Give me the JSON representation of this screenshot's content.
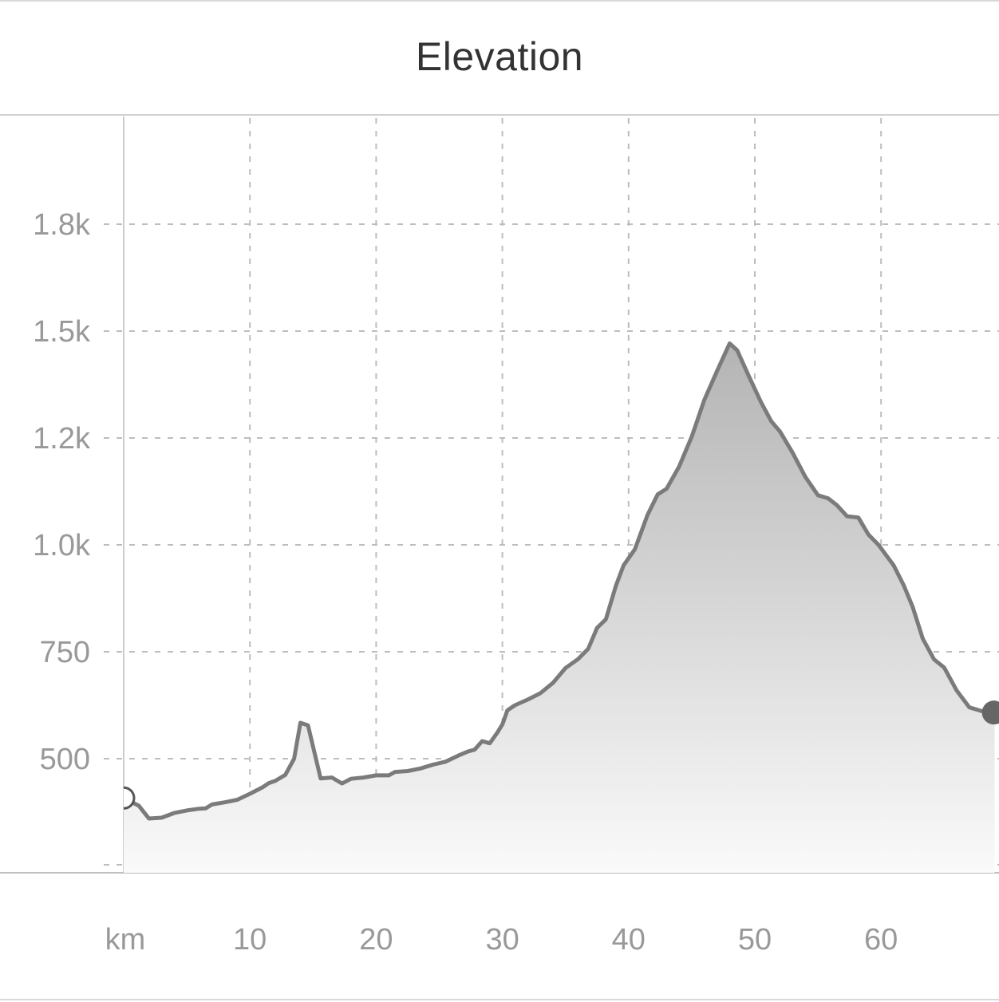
{
  "chart_data": {
    "type": "area",
    "title": "Elevation",
    "xlabel": "km",
    "ylabel": "",
    "x_tick_labels": [
      "km",
      "10",
      "20",
      "30",
      "40",
      "50",
      "60"
    ],
    "y_tick_labels": [
      "500",
      "750",
      "1.0k",
      "1.2k",
      "1.5k",
      "1.8k"
    ],
    "xlim": [
      0,
      69
    ],
    "ylim": [
      300,
      2070
    ],
    "grid": true,
    "colors": {
      "line": "#7b7b7b",
      "fill_top": "#b4b4b4",
      "fill_bottom": "#fafafa",
      "grid": "#bdbdbd",
      "end_marker": "#666666"
    },
    "markers": {
      "start": "open-circle",
      "end": "filled-circle"
    },
    "series": [
      {
        "name": "Elevation",
        "points": [
          [
            0.0,
            408
          ],
          [
            1.2,
            390
          ],
          [
            2.0,
            360
          ],
          [
            3.0,
            362
          ],
          [
            4.0,
            373
          ],
          [
            5.0,
            379
          ],
          [
            6.0,
            383
          ],
          [
            6.5,
            384
          ],
          [
            7.0,
            393
          ],
          [
            8.0,
            398
          ],
          [
            9.0,
            404
          ],
          [
            10.0,
            418
          ],
          [
            11.0,
            433
          ],
          [
            11.5,
            443
          ],
          [
            12.0,
            448
          ],
          [
            12.8,
            462
          ],
          [
            13.5,
            500
          ],
          [
            14.0,
            584
          ],
          [
            14.6,
            578
          ],
          [
            15.6,
            454
          ],
          [
            16.5,
            456
          ],
          [
            17.3,
            442
          ],
          [
            18.0,
            453
          ],
          [
            19.0,
            456
          ],
          [
            20.0,
            461
          ],
          [
            21.0,
            461
          ],
          [
            21.5,
            469
          ],
          [
            22.5,
            471
          ],
          [
            23.5,
            477
          ],
          [
            24.5,
            486
          ],
          [
            25.5,
            493
          ],
          [
            26.5,
            507
          ],
          [
            27.2,
            516
          ],
          [
            27.8,
            521
          ],
          [
            28.4,
            541
          ],
          [
            29.0,
            536
          ],
          [
            29.6,
            561
          ],
          [
            30.0,
            580
          ],
          [
            30.4,
            613
          ],
          [
            31.0,
            625
          ],
          [
            32.0,
            638
          ],
          [
            33.0,
            653
          ],
          [
            34.0,
            677
          ],
          [
            35.0,
            712
          ],
          [
            36.0,
            733
          ],
          [
            36.8,
            757
          ],
          [
            37.5,
            806
          ],
          [
            38.2,
            826
          ],
          [
            39.0,
            905
          ],
          [
            39.6,
            952
          ],
          [
            40.5,
            990
          ],
          [
            41.5,
            1070
          ],
          [
            42.3,
            1118
          ],
          [
            43.0,
            1131
          ],
          [
            44.0,
            1183
          ],
          [
            45.0,
            1253
          ],
          [
            46.0,
            1339
          ],
          [
            47.0,
            1406
          ],
          [
            48.0,
            1471
          ],
          [
            48.6,
            1455
          ],
          [
            49.5,
            1396
          ],
          [
            50.5,
            1333
          ],
          [
            51.3,
            1289
          ],
          [
            52.0,
            1265
          ],
          [
            53.0,
            1215
          ],
          [
            54.0,
            1159
          ],
          [
            55.0,
            1116
          ],
          [
            55.8,
            1109
          ],
          [
            56.5,
            1093
          ],
          [
            57.3,
            1067
          ],
          [
            58.2,
            1064
          ],
          [
            59.0,
            1024
          ],
          [
            59.8,
            1000
          ],
          [
            61.0,
            952
          ],
          [
            61.8,
            905
          ],
          [
            62.5,
            855
          ],
          [
            63.3,
            781
          ],
          [
            64.2,
            732
          ],
          [
            65.0,
            713
          ],
          [
            66.0,
            659
          ],
          [
            67.0,
            620
          ],
          [
            68.0,
            611
          ],
          [
            69.0,
            606
          ]
        ]
      }
    ]
  }
}
